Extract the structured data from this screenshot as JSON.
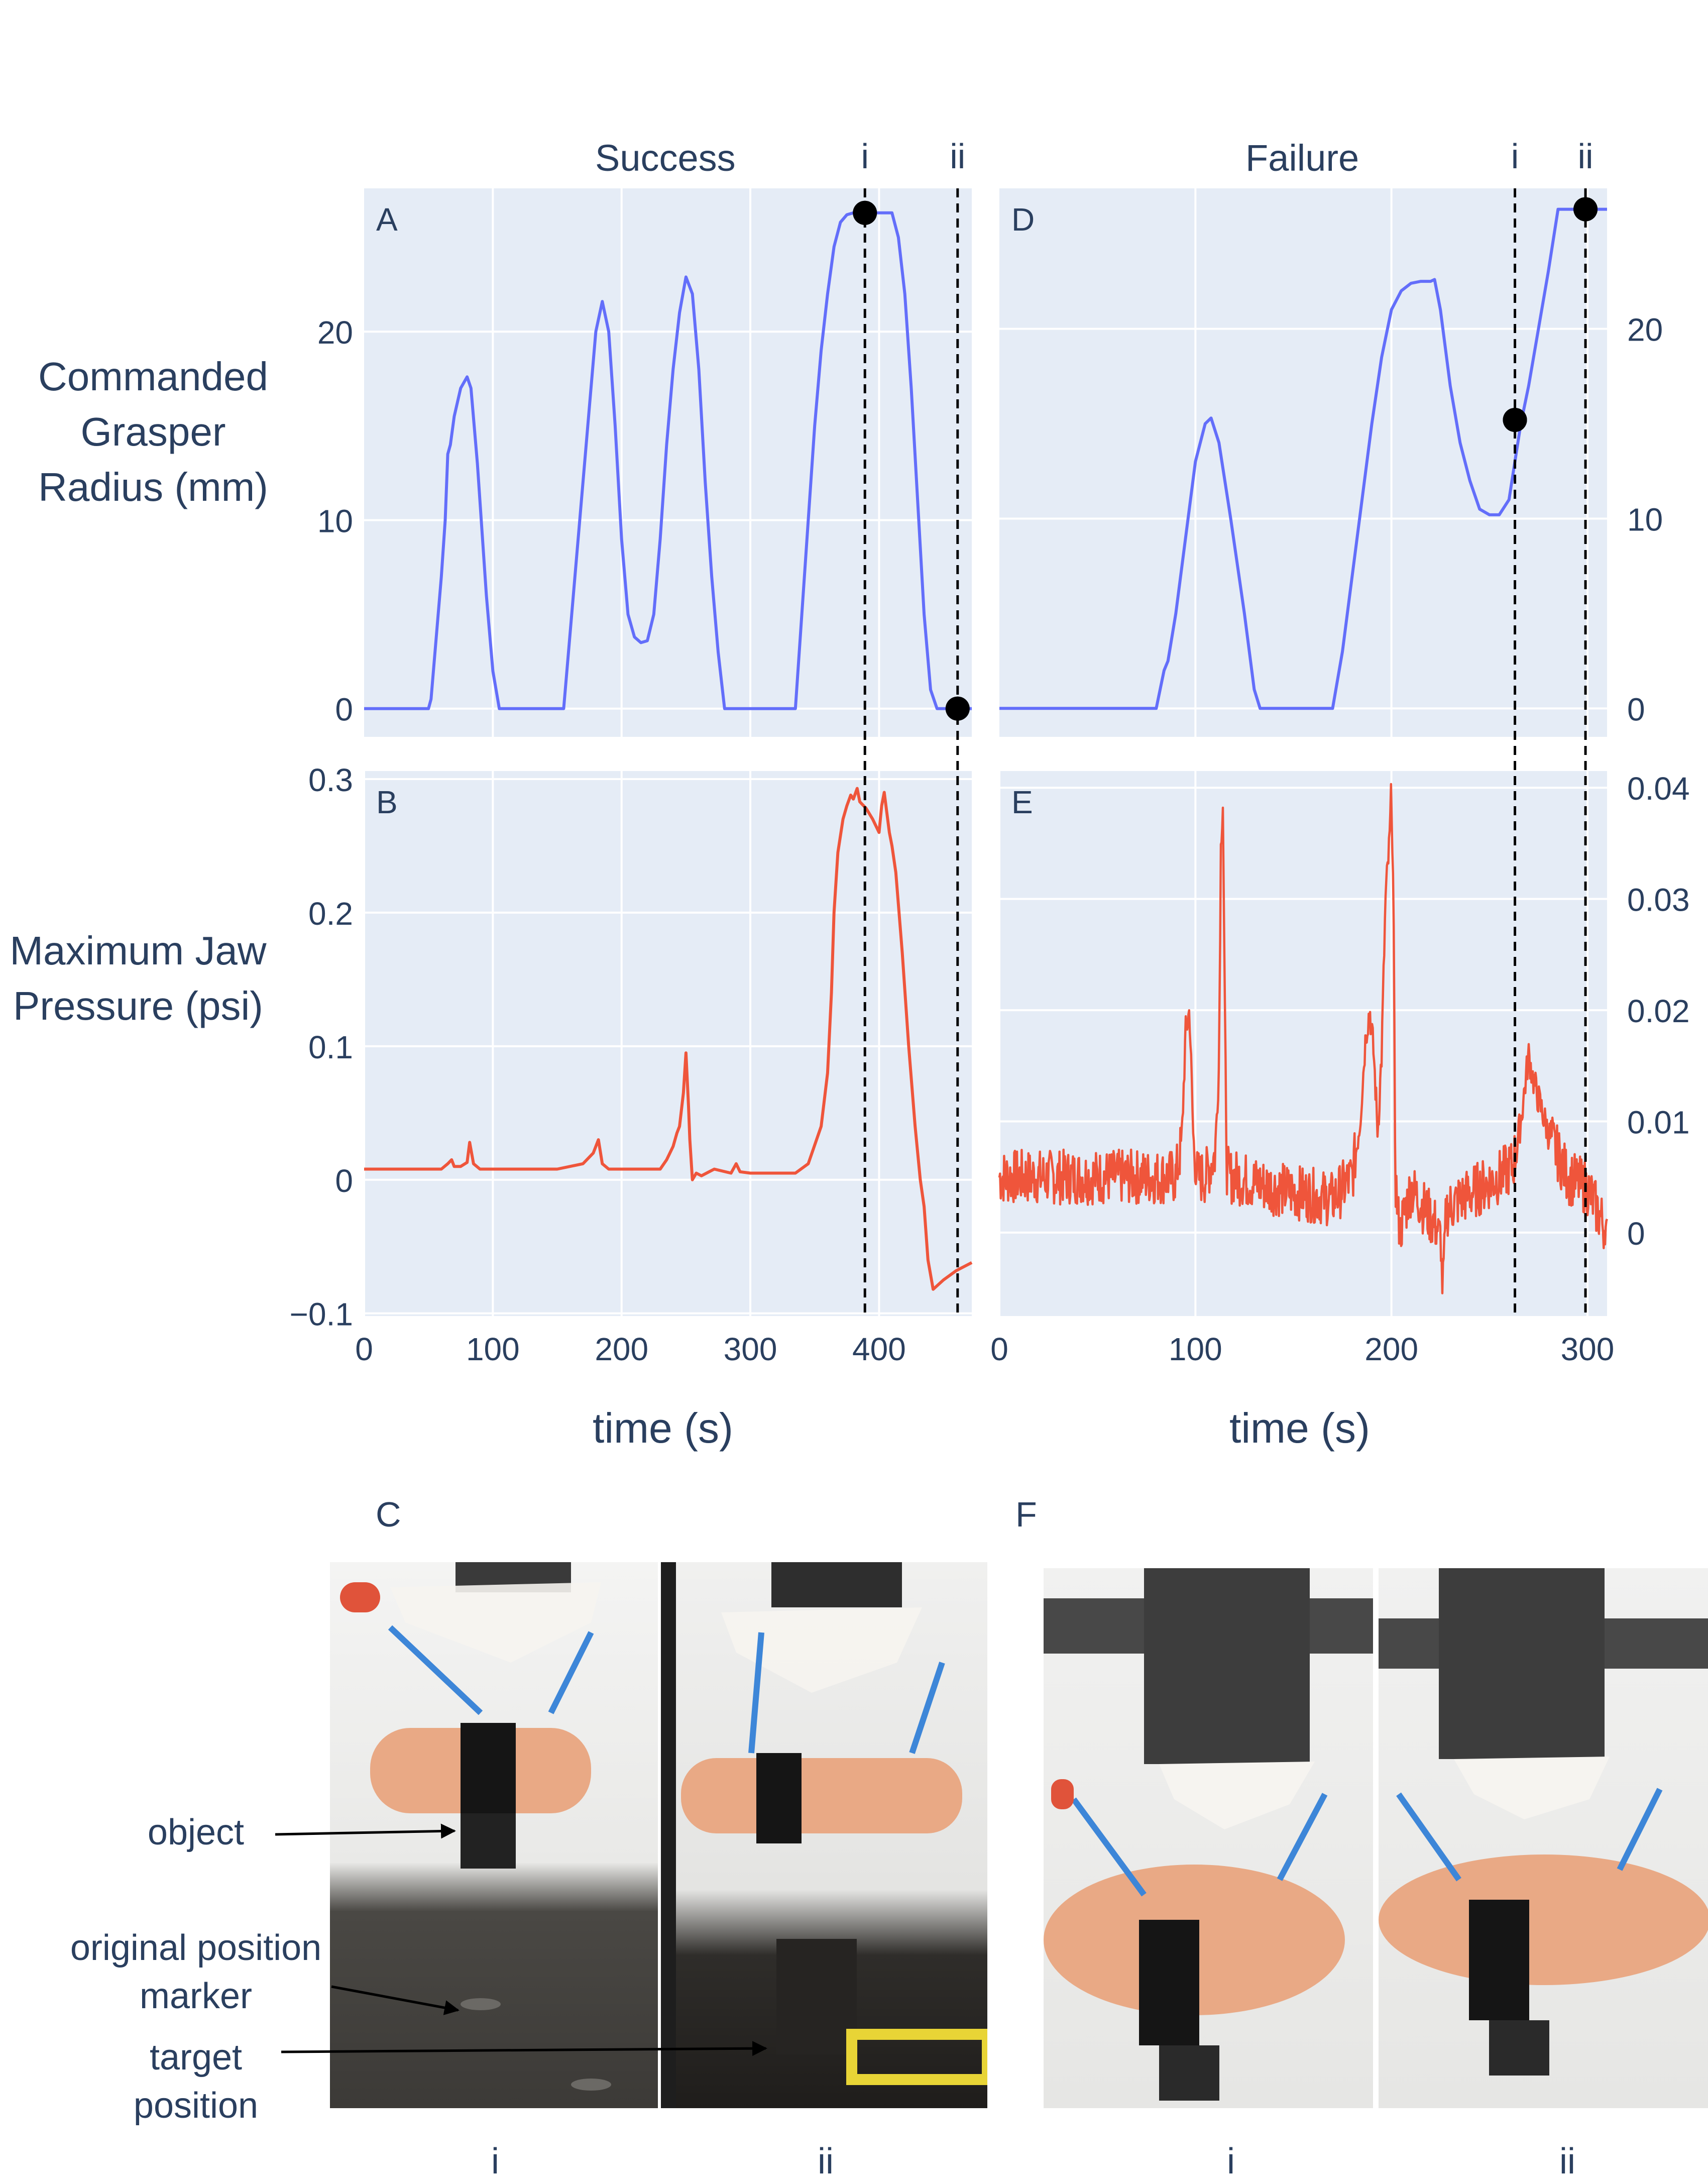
{
  "figure": {
    "left_title": "Success",
    "right_title": "Failure",
    "ylabel_top": [
      "Commanded",
      "Grasper",
      "Radius (mm)"
    ],
    "ylabel_bottom": [
      "Maximum Jaw",
      "Pressure (psi)"
    ],
    "xlabel": "time (s)",
    "vline_labels": [
      "i",
      "ii"
    ],
    "panel_letters": [
      "A",
      "B",
      "C",
      "D",
      "E",
      "F"
    ]
  },
  "chart_data": [
    {
      "id": "A",
      "type": "line",
      "title": "Success",
      "xlabel": "",
      "ylabel": "Commanded Grasper Radius (mm)",
      "xlim": [
        0,
        472
      ],
      "ylim": [
        -1.5,
        27.6
      ],
      "yticks": [
        0,
        10,
        20
      ],
      "ytick_labels": [
        "0",
        "10",
        "20"
      ],
      "xticks": [
        100,
        200,
        300,
        400
      ],
      "color": "#636efa",
      "series": [
        {
          "x": [
            0,
            50,
            52,
            60,
            63,
            65,
            67,
            70,
            75,
            80,
            83,
            88,
            95,
            100,
            105,
            110,
            150,
            155,
            160,
            165,
            170,
            175,
            180,
            185,
            190,
            195,
            200,
            205,
            210,
            215,
            220,
            225,
            230,
            235,
            240,
            245,
            250,
            255,
            260,
            265,
            270,
            275,
            280,
            285,
            290,
            295,
            300,
            330,
            335,
            340,
            345,
            350,
            355,
            360,
            365,
            370,
            375,
            380,
            400,
            410,
            415,
            420,
            425,
            430,
            435,
            440,
            445,
            472
          ],
          "y": [
            0,
            0,
            0.5,
            7,
            10,
            13.5,
            14,
            15.5,
            17,
            17.6,
            17,
            13,
            6,
            2,
            0,
            0,
            0,
            0,
            4,
            8,
            12,
            16,
            20,
            21.6,
            20,
            15,
            9,
            5,
            3.8,
            3.5,
            3.6,
            5,
            9,
            14,
            18,
            21,
            22.9,
            22,
            18,
            12,
            7,
            3,
            0,
            0,
            0,
            0,
            0,
            0,
            0,
            5,
            10,
            15,
            19,
            22,
            24.5,
            25.8,
            26.2,
            26.3,
            26.3,
            26.3,
            25,
            22,
            17,
            11,
            5,
            1,
            0,
            0
          ]
        }
      ],
      "vlines": [
        {
          "label": "i",
          "x": 389
        },
        {
          "label": "ii",
          "x": 461
        }
      ],
      "markers": [
        {
          "x": 389,
          "y": 26.3
        },
        {
          "x": 461,
          "y": 0
        }
      ]
    },
    {
      "id": "B",
      "type": "line",
      "title": "",
      "xlabel": "time (s)",
      "ylabel": "Maximum Jaw Pressure (psi)",
      "xlim": [
        0,
        472
      ],
      "ylim": [
        -0.102,
        0.306
      ],
      "yticks": [
        -0.1,
        0,
        0.1,
        0.2,
        0.3
      ],
      "ytick_labels": [
        "−0.1",
        "0",
        "0.1",
        "0.2",
        "0.3"
      ],
      "xticks": [
        0,
        100,
        200,
        300,
        400
      ],
      "xtick_labels": [
        "0",
        "100",
        "200",
        "300",
        "400"
      ],
      "color": "#ef553b",
      "series": [
        {
          "x": [
            0,
            60,
            65,
            68,
            70,
            75,
            80,
            82,
            85,
            90,
            150,
            170,
            178,
            182,
            185,
            190,
            230,
            235,
            240,
            243,
            245,
            248,
            250,
            252,
            253,
            255,
            258,
            262,
            268,
            272,
            285,
            289,
            292,
            300,
            335,
            345,
            355,
            360,
            363,
            365,
            368,
            372,
            375,
            378,
            380,
            383,
            385,
            390,
            395,
            400,
            402,
            404,
            406,
            408,
            410,
            413,
            418,
            423,
            428,
            432,
            435,
            438,
            442,
            450,
            460,
            472
          ],
          "y": [
            0.008,
            0.008,
            0.012,
            0.015,
            0.01,
            0.01,
            0.013,
            0.028,
            0.012,
            0.008,
            0.008,
            0.012,
            0.02,
            0.03,
            0.012,
            0.008,
            0.008,
            0.015,
            0.025,
            0.035,
            0.04,
            0.065,
            0.095,
            0.055,
            0.03,
            0.0,
            0.005,
            0.003,
            0.006,
            0.008,
            0.005,
            0.012,
            0.006,
            0.005,
            0.005,
            0.012,
            0.04,
            0.08,
            0.14,
            0.2,
            0.245,
            0.27,
            0.28,
            0.288,
            0.285,
            0.293,
            0.283,
            0.278,
            0.27,
            0.26,
            0.28,
            0.29,
            0.275,
            0.26,
            0.25,
            0.23,
            0.17,
            0.1,
            0.04,
            0.0,
            -0.02,
            -0.06,
            -0.082,
            -0.075,
            -0.068,
            -0.062
          ]
        }
      ],
      "vlines": [
        {
          "label": "i",
          "x": 389
        },
        {
          "label": "ii",
          "x": 461
        }
      ]
    },
    {
      "id": "D",
      "type": "line",
      "title": "Failure",
      "xlabel": "",
      "ylabel": "",
      "xlim": [
        0,
        310
      ],
      "ylim": [
        -1.5,
        27.4
      ],
      "yaxis_side": "right",
      "yticks": [
        0,
        10,
        20
      ],
      "ytick_labels": [
        "0",
        "10",
        "20"
      ],
      "xticks": [
        100,
        200,
        300
      ],
      "color": "#636efa",
      "series": [
        {
          "x": [
            0,
            80,
            82,
            84,
            86,
            90,
            95,
            100,
            105,
            108,
            112,
            118,
            125,
            130,
            133,
            136,
            140,
            170,
            175,
            180,
            185,
            190,
            195,
            200,
            205,
            210,
            215,
            220,
            222,
            225,
            230,
            235,
            240,
            245,
            250,
            255,
            260,
            263,
            266,
            270,
            275,
            280,
            285,
            290,
            295,
            310
          ],
          "y": [
            0,
            0,
            1,
            2,
            2.5,
            5,
            9,
            13,
            15,
            15.3,
            14,
            10,
            5,
            1,
            0,
            0,
            0,
            0,
            3,
            7,
            11,
            15,
            18.5,
            21,
            22,
            22.4,
            22.5,
            22.5,
            22.6,
            21,
            17,
            14,
            12,
            10.5,
            10.2,
            10.2,
            11,
            13,
            15,
            17,
            20,
            23,
            26.3,
            26.3,
            26.3,
            26.3
          ]
        }
      ],
      "vlines": [
        {
          "label": "i",
          "x": 263
        },
        {
          "label": "ii",
          "x": 299
        }
      ],
      "markers": [
        {
          "x": 263,
          "y": 15.2
        },
        {
          "x": 299,
          "y": 26.3
        }
      ]
    },
    {
      "id": "E",
      "type": "line",
      "title": "",
      "xlabel": "time (s)",
      "ylabel": "",
      "yaxis_side": "right",
      "xlim": [
        0,
        310
      ],
      "ylim": [
        -0.0075,
        0.0415
      ],
      "yticks": [
        0,
        0.01,
        0.02,
        0.03,
        0.04
      ],
      "ytick_labels": [
        "0",
        "0.01",
        "0.02",
        "0.03",
        "0.04"
      ],
      "xticks": [
        0,
        100,
        200,
        300
      ],
      "xtick_labels": [
        "0",
        "100",
        "200",
        "300"
      ],
      "color": "#ef553b",
      "noise": {
        "base": 0.0045,
        "amplitude": 0.0025
      },
      "series": [
        {
          "x": [
            0,
            90,
            93,
            95,
            97,
            99,
            101,
            105,
            110,
            112,
            113,
            114,
            115,
            116,
            117,
            120,
            140,
            170,
            180,
            184,
            187,
            189,
            191,
            193,
            195,
            197,
            199,
            200,
            201,
            202,
            204,
            210,
            225,
            226,
            228,
            235,
            255,
            262,
            266,
            268,
            270,
            272,
            275,
            280,
            285,
            290,
            300,
            305,
            310
          ],
          "y": [
            0.005,
            0.005,
            0.008,
            0.018,
            0.02,
            0.008,
            0.005,
            0.005,
            0.007,
            0.015,
            0.035,
            0.039,
            0.02,
            0.006,
            0.005,
            0.005,
            0.004,
            0.003,
            0.005,
            0.01,
            0.018,
            0.02,
            0.016,
            0.009,
            0.016,
            0.03,
            0.035,
            0.04,
            0.03,
            0.005,
            0.0,
            0.004,
            0.0,
            -0.005,
            0.002,
            0.003,
            0.005,
            0.006,
            0.01,
            0.013,
            0.016,
            0.014,
            0.012,
            0.009,
            0.007,
            0.005,
            0.004,
            0.002,
            0.0
          ]
        }
      ],
      "vlines": [
        {
          "label": "i",
          "x": 263
        },
        {
          "label": "ii",
          "x": 299
        }
      ]
    }
  ],
  "annotations": {
    "object": "object",
    "original_position_marker": [
      "original position",
      "marker"
    ],
    "target_position": [
      "target",
      "position"
    ]
  },
  "photo_captions": [
    "i",
    "ii",
    "i",
    "ii"
  ]
}
